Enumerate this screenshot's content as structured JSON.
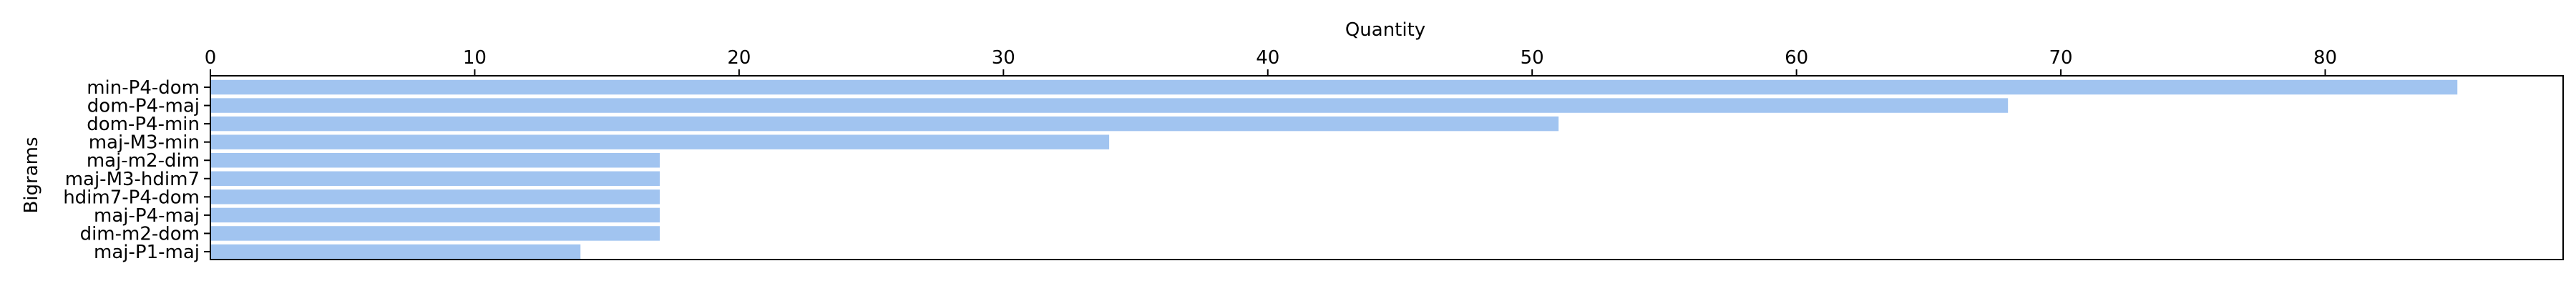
{
  "chart_data": {
    "type": "bar",
    "orientation": "horizontal",
    "xlabel": "Quantity",
    "ylabel": "Bigrams",
    "xlabel_position": "top",
    "xlim": [
      0,
      89
    ],
    "xticks": [
      0,
      10,
      20,
      30,
      40,
      50,
      60,
      70,
      80
    ],
    "grid": false,
    "bar_color": "#a1c4f0",
    "categories": [
      "min-P4-dom",
      "dom-P4-maj",
      "dom-P4-min",
      "maj-M3-min",
      "maj-m2-dim",
      "maj-M3-hdim7",
      "hdim7-P4-dom",
      "maj-P4-maj",
      "dim-m2-dom",
      "maj-P1-maj"
    ],
    "values": [
      85,
      68,
      51,
      34,
      17,
      17,
      17,
      17,
      17,
      14
    ]
  }
}
